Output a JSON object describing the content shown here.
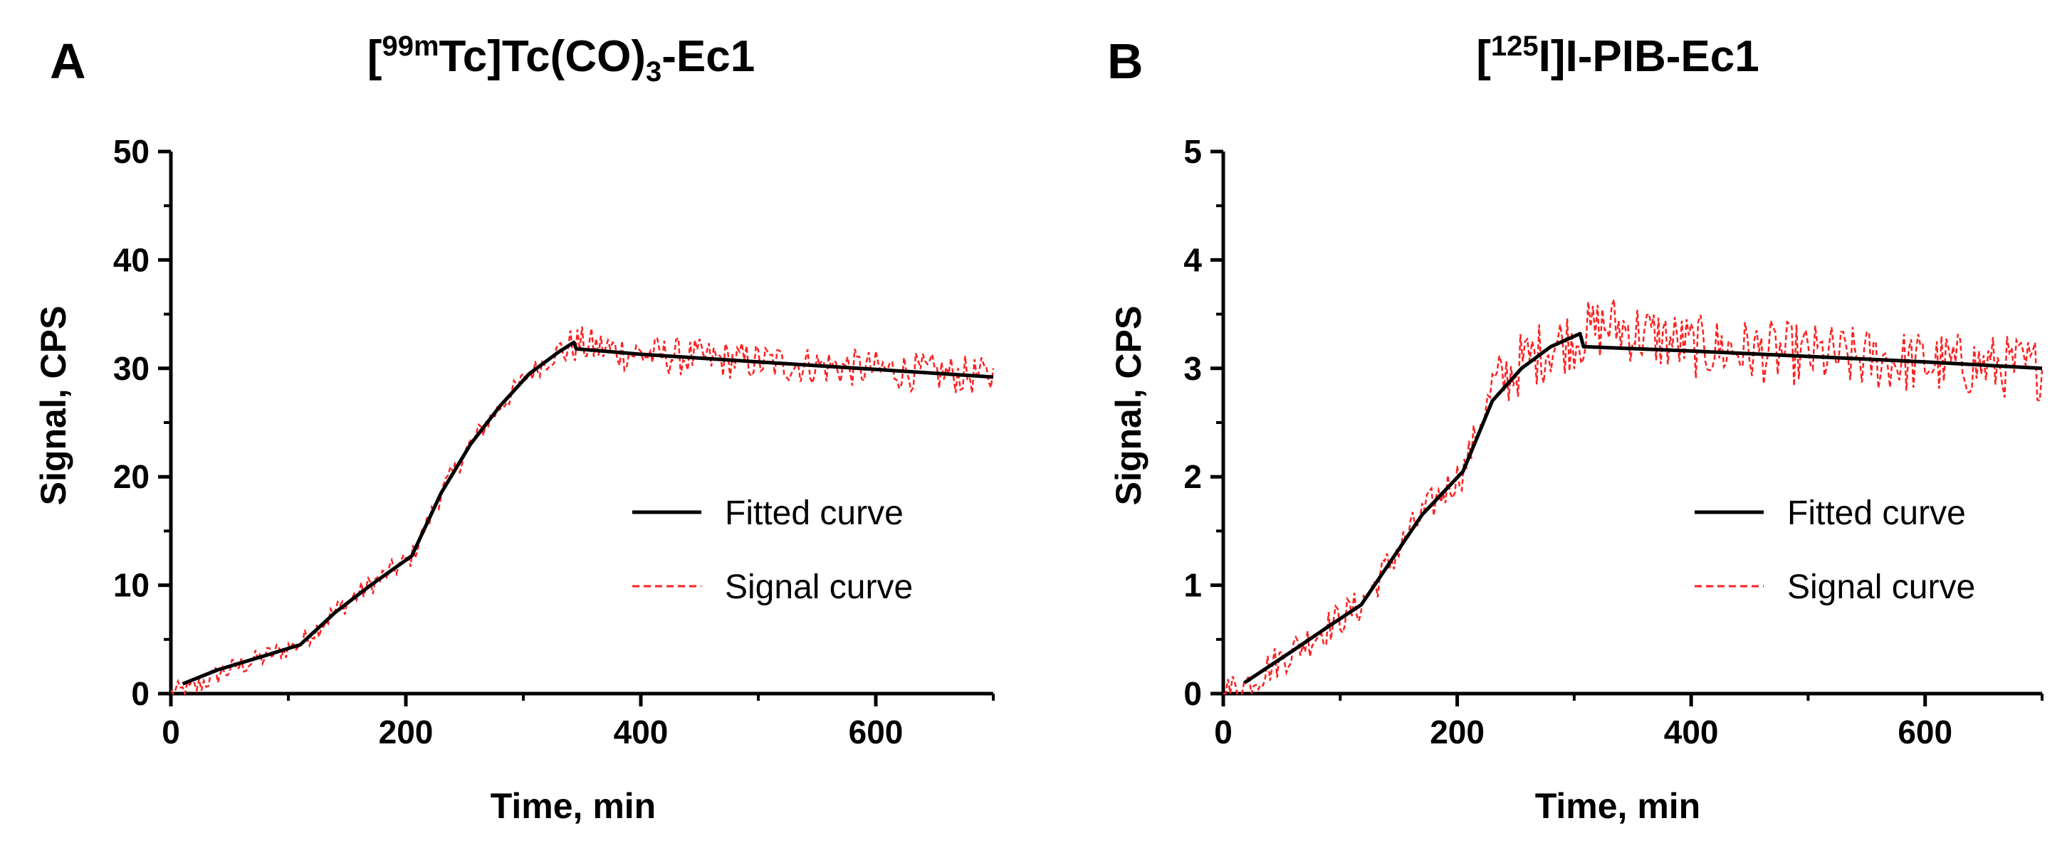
{
  "chart_data": [
    {
      "panel": "A",
      "type": "line",
      "title": {
        "pre": "[",
        "sup": "99m",
        "mid": "Tc]Tc(CO)",
        "sub": "3",
        "post": "-Ec1"
      },
      "xlabel": "Time, min",
      "ylabel": "Signal, CPS",
      "xlim": [
        0,
        700
      ],
      "ylim": [
        0,
        50
      ],
      "xticks": [
        "0",
        "200",
        "400",
        "600"
      ],
      "xtick_values": [
        0,
        200,
        400,
        600
      ],
      "yticks": [
        "0",
        "10",
        "20",
        "30",
        "40",
        "50"
      ],
      "ytick_values": [
        0,
        10,
        20,
        30,
        40,
        50
      ],
      "legend_position": "right",
      "series": [
        {
          "name": "Fitted curve",
          "color": "#000000",
          "style": "solid",
          "x": [
            10,
            40,
            80,
            110,
            140,
            170,
            205,
            230,
            255,
            280,
            305,
            330,
            343,
            345,
            400,
            500,
            600,
            700
          ],
          "y": [
            0.9,
            2.2,
            3.5,
            4.5,
            7.5,
            10.0,
            12.7,
            18.5,
            23.0,
            26.5,
            29.5,
            31.5,
            32.4,
            31.8,
            31.3,
            30.6,
            29.9,
            29.2
          ]
        },
        {
          "name": "Signal curve",
          "color": "#ff2020",
          "style": "dashed",
          "noisy": true,
          "noise_amplitude": 1.8,
          "noise_start": 330,
          "x": [
            0,
            20,
            40,
            80,
            110,
            140,
            170,
            205,
            230,
            255,
            280,
            305,
            330,
            345,
            400,
            500,
            600,
            700
          ],
          "y": [
            0.0,
            0.5,
            1.8,
            3.4,
            4.6,
            7.6,
            10.0,
            12.6,
            18.5,
            23.0,
            26.5,
            29.5,
            31.5,
            32.2,
            31.3,
            30.6,
            29.9,
            29.2
          ]
        }
      ]
    },
    {
      "panel": "B",
      "type": "line",
      "title": {
        "pre": "[",
        "sup": "125",
        "mid": "I]I-PIB-Ec1",
        "sub": "",
        "post": ""
      },
      "xlabel": "Time, min",
      "ylabel": "Signal, CPS",
      "xlim": [
        0,
        700
      ],
      "ylim": [
        0,
        5
      ],
      "xticks": [
        "0",
        "200",
        "400",
        "600"
      ],
      "xtick_values": [
        0,
        200,
        400,
        600
      ],
      "yticks": [
        "0",
        "1",
        "2",
        "3",
        "4",
        "5"
      ],
      "ytick_values": [
        0,
        1,
        2,
        3,
        4,
        5
      ],
      "legend_position": "right",
      "series": [
        {
          "name": "Fitted curve",
          "color": "#000000",
          "style": "solid",
          "x": [
            18,
            60,
            90,
            118,
            145,
            170,
            205,
            230,
            255,
            280,
            305,
            308,
            400,
            500,
            600,
            700
          ],
          "y": [
            0.1,
            0.4,
            0.62,
            0.82,
            1.25,
            1.65,
            2.05,
            2.7,
            3.0,
            3.2,
            3.32,
            3.2,
            3.16,
            3.11,
            3.06,
            3.0
          ]
        },
        {
          "name": "Signal curve",
          "color": "#ff2020",
          "style": "dashed",
          "noisy": true,
          "noise_amplitude": 0.3,
          "noise_start": 230,
          "x": [
            0,
            20,
            40,
            60,
            90,
            118,
            145,
            170,
            205,
            230,
            255,
            280,
            305,
            330,
            400,
            500,
            600,
            700
          ],
          "y": [
            0.0,
            0.1,
            0.25,
            0.4,
            0.62,
            0.82,
            1.25,
            1.65,
            2.05,
            2.8,
            3.05,
            3.2,
            3.3,
            3.4,
            3.2,
            3.12,
            3.05,
            3.0
          ]
        }
      ]
    }
  ]
}
